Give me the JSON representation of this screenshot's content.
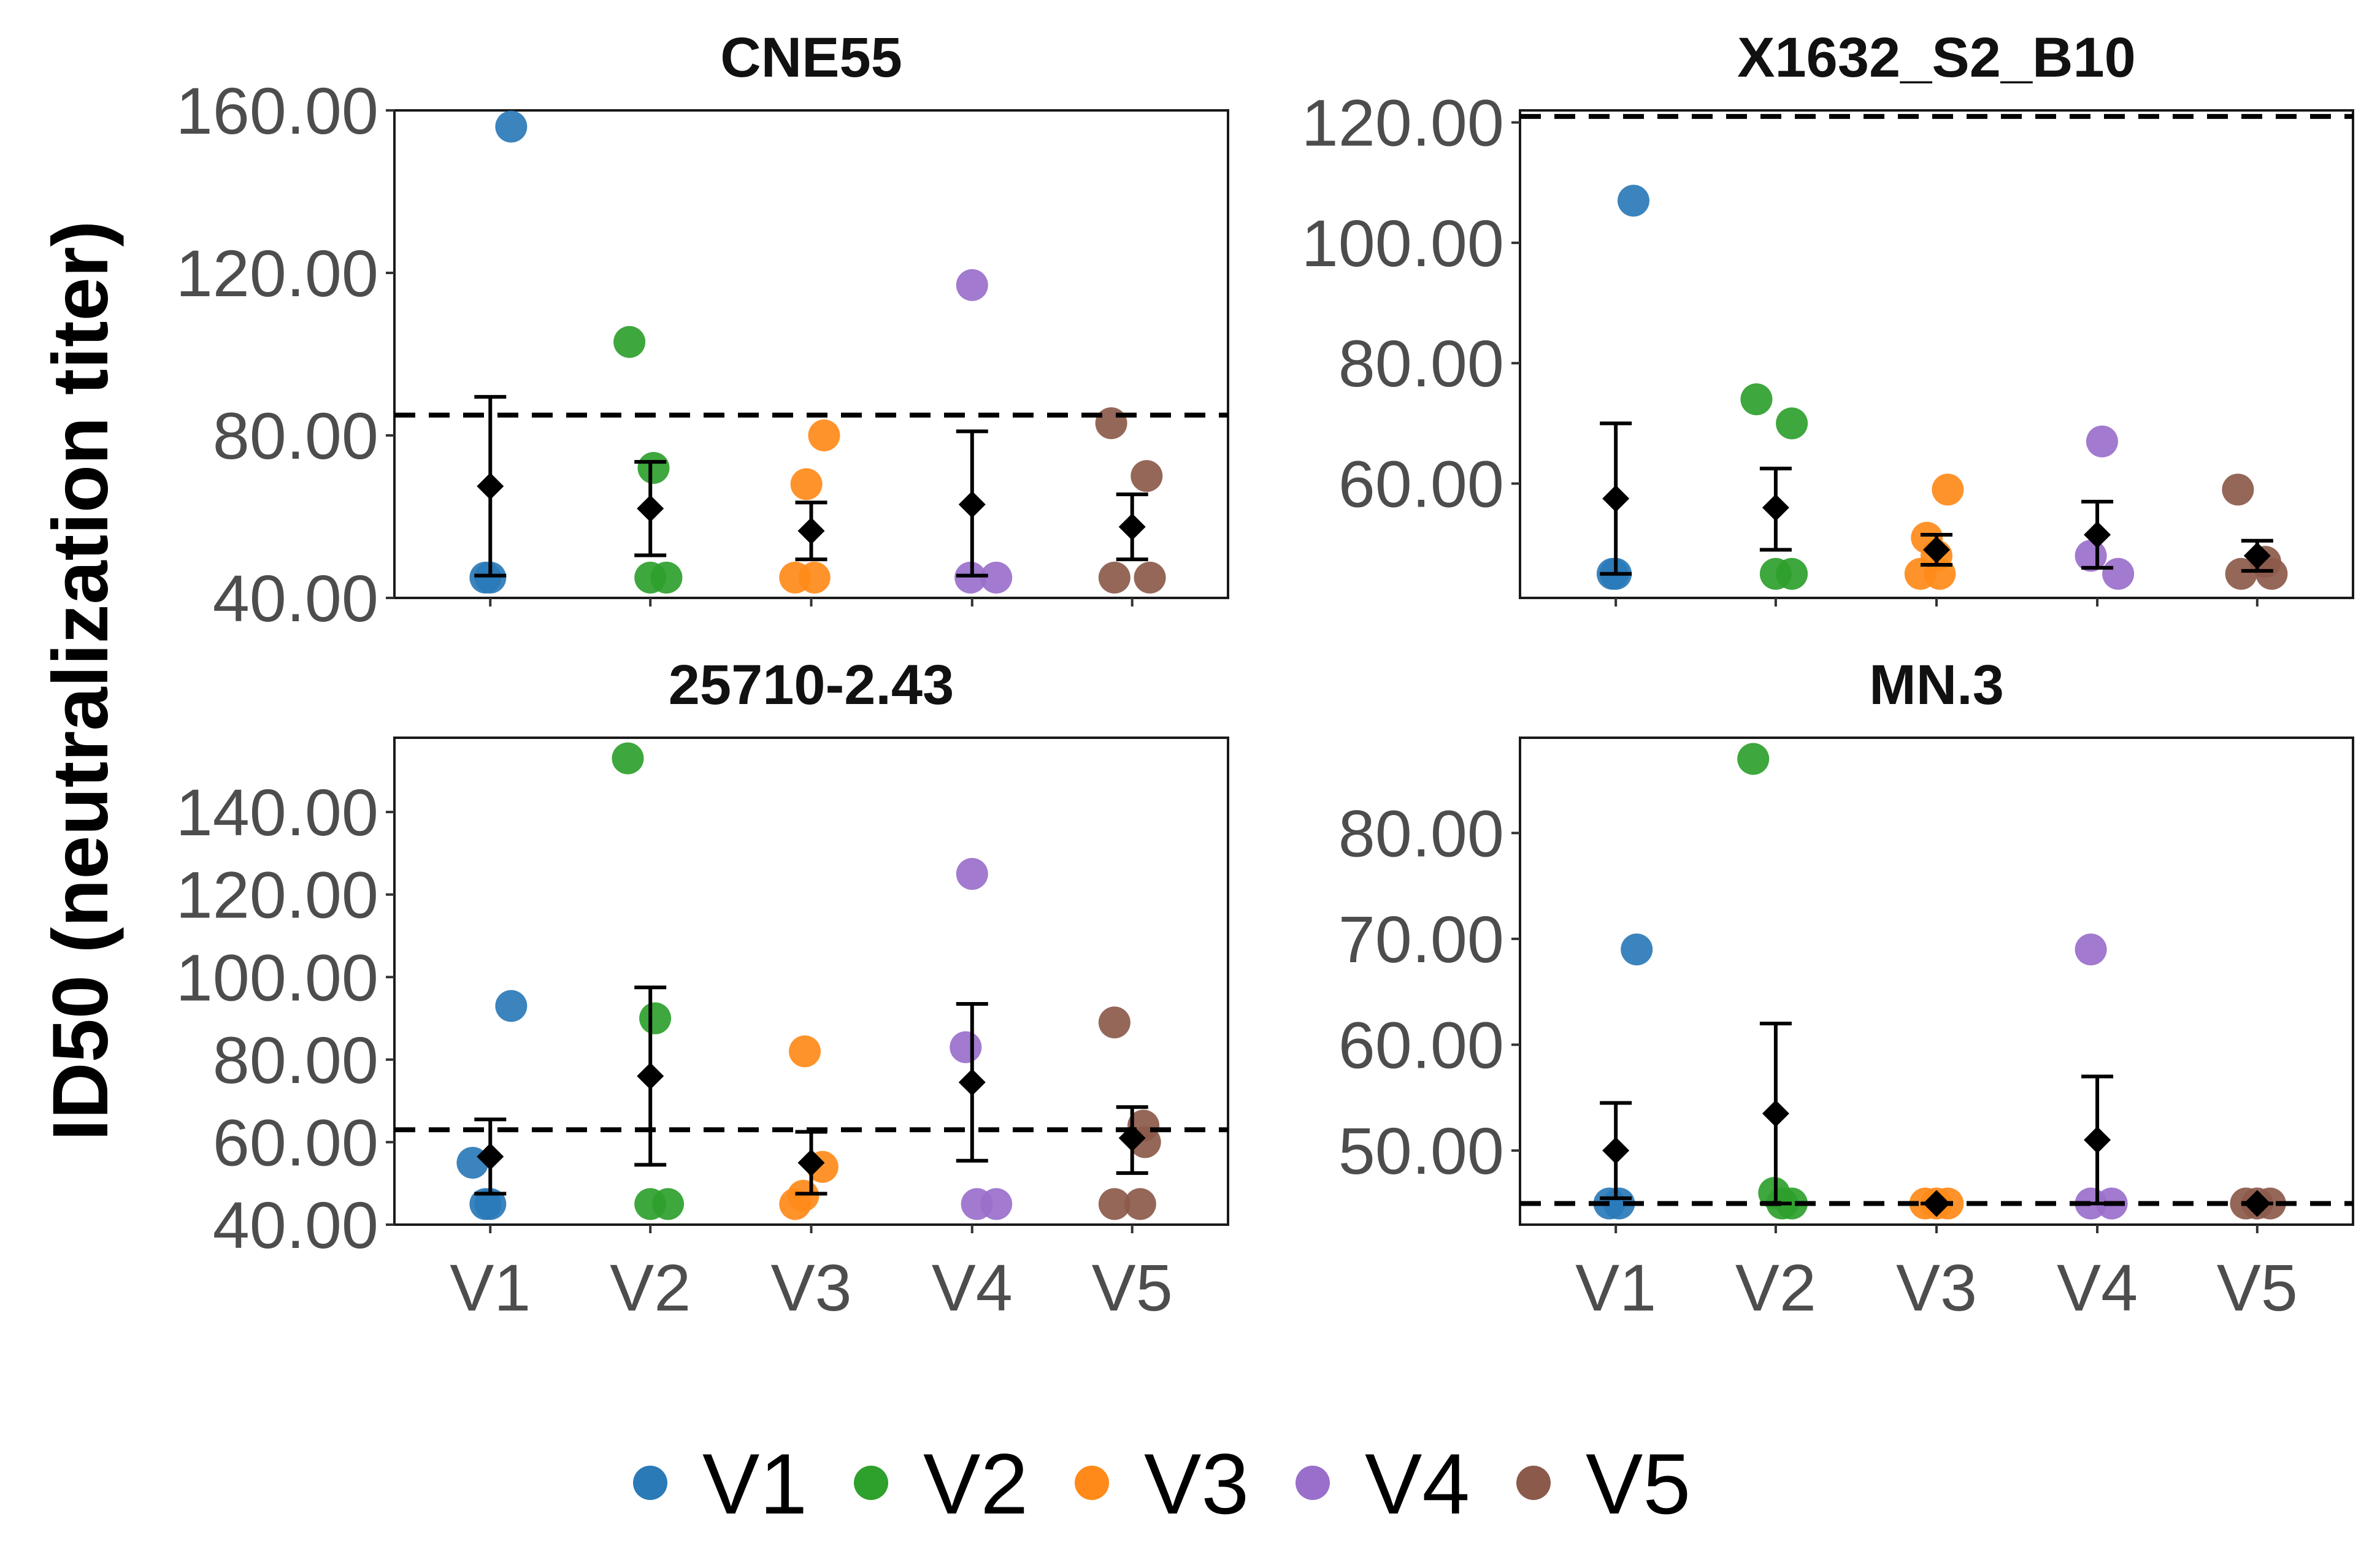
{
  "y_axis_label": "ID50 (neutralization titer)",
  "colors": {
    "V1": "#2a7ab8",
    "V2": "#2ea02c",
    "V3": "#ff8a19",
    "V4": "#9a6fcb",
    "V5": "#8c5a4b",
    "summary": "#000000",
    "threshold": "#000000"
  },
  "legend": [
    {
      "key": "V1",
      "label": "V1"
    },
    {
      "key": "V2",
      "label": "V2"
    },
    {
      "key": "V3",
      "label": "V3"
    },
    {
      "key": "V4",
      "label": "V4"
    },
    {
      "key": "V5",
      "label": "V5"
    }
  ],
  "chart_data": [
    {
      "type": "scatter",
      "title": "CNE55",
      "categories": [
        "V1",
        "V2",
        "V3",
        "V4",
        "V5"
      ],
      "ylim": [
        40,
        160
      ],
      "yticks": [
        40,
        80,
        120,
        160
      ],
      "ytick_labels": [
        "40.00",
        "80.00",
        "120.00",
        "160.00"
      ],
      "threshold": 85,
      "series": [
        {
          "name": "V1",
          "points": [
            {
              "dx": -0.03,
              "y": 45
            },
            {
              "dx": 0.0,
              "y": 45
            },
            {
              "dx": 0.13,
              "y": 156
            }
          ]
        },
        {
          "name": "V2",
          "points": [
            {
              "dx": 0.0,
              "y": 45
            },
            {
              "dx": 0.1,
              "y": 45
            },
            {
              "dx": 0.02,
              "y": 72
            },
            {
              "dx": -0.13,
              "y": 103
            }
          ]
        },
        {
          "name": "V3",
          "points": [
            {
              "dx": -0.1,
              "y": 45
            },
            {
              "dx": 0.02,
              "y": 45
            },
            {
              "dx": -0.03,
              "y": 68
            },
            {
              "dx": 0.08,
              "y": 80
            }
          ]
        },
        {
          "name": "V4",
          "points": [
            {
              "dx": -0.01,
              "y": 45
            },
            {
              "dx": 0.15,
              "y": 45
            },
            {
              "dx": 0.0,
              "y": 117
            }
          ]
        },
        {
          "name": "V5",
          "points": [
            {
              "dx": -0.11,
              "y": 45
            },
            {
              "dx": 0.11,
              "y": 45
            },
            {
              "dx": 0.09,
              "y": 70
            },
            {
              "dx": -0.13,
              "y": 83
            }
          ]
        }
      ],
      "summary": [
        {
          "category": "V1",
          "mean": 67.5,
          "low": 45.5,
          "high": 89.5
        },
        {
          "category": "V2",
          "mean": 62,
          "low": 50.5,
          "high": 73.5
        },
        {
          "category": "V3",
          "mean": 56.5,
          "low": 49.5,
          "high": 63.5
        },
        {
          "category": "V4",
          "mean": 63,
          "low": 45.5,
          "high": 81
        },
        {
          "category": "V5",
          "mean": 57.5,
          "low": 49.5,
          "high": 65.5
        }
      ]
    },
    {
      "type": "scatter",
      "title": "X1632_S2_B10",
      "categories": [
        "V1",
        "V2",
        "V3",
        "V4",
        "V5"
      ],
      "ylim": [
        41,
        122
      ],
      "yticks": [
        60,
        80,
        100,
        120
      ],
      "ytick_labels": [
        "60.00",
        "80.00",
        "100.00",
        "120.00"
      ],
      "threshold": 121,
      "series": [
        {
          "name": "V1",
          "points": [
            {
              "dx": -0.02,
              "y": 45
            },
            {
              "dx": 0.0,
              "y": 45
            },
            {
              "dx": 0.11,
              "y": 107
            }
          ]
        },
        {
          "name": "V2",
          "points": [
            {
              "dx": 0.0,
              "y": 45
            },
            {
              "dx": 0.1,
              "y": 45
            },
            {
              "dx": 0.1,
              "y": 70
            },
            {
              "dx": -0.12,
              "y": 74
            }
          ]
        },
        {
          "name": "V3",
          "points": [
            {
              "dx": -0.1,
              "y": 45
            },
            {
              "dx": 0.02,
              "y": 45
            },
            {
              "dx": -0.06,
              "y": 51
            },
            {
              "dx": 0.0,
              "y": 48
            },
            {
              "dx": 0.07,
              "y": 59
            }
          ]
        },
        {
          "name": "V4",
          "points": [
            {
              "dx": -0.04,
              "y": 48
            },
            {
              "dx": 0.13,
              "y": 45
            },
            {
              "dx": 0.03,
              "y": 67
            }
          ]
        },
        {
          "name": "V5",
          "points": [
            {
              "dx": -0.1,
              "y": 45
            },
            {
              "dx": 0.09,
              "y": 45
            },
            {
              "dx": 0.05,
              "y": 47
            },
            {
              "dx": -0.12,
              "y": 59
            }
          ]
        }
      ],
      "summary": [
        {
          "category": "V1",
          "mean": 57.5,
          "low": 45,
          "high": 70
        },
        {
          "category": "V2",
          "mean": 56,
          "low": 49,
          "high": 62.5
        },
        {
          "category": "V3",
          "mean": 49,
          "low": 46.5,
          "high": 51.5
        },
        {
          "category": "V4",
          "mean": 51.5,
          "low": 46,
          "high": 57
        },
        {
          "category": "V5",
          "mean": 48,
          "low": 45.5,
          "high": 50.5
        }
      ]
    },
    {
      "type": "scatter",
      "title": "25710-2.43",
      "categories": [
        "V1",
        "V2",
        "V3",
        "V4",
        "V5"
      ],
      "ylim": [
        40,
        158
      ],
      "yticks": [
        40,
        60,
        80,
        100,
        120,
        140
      ],
      "ytick_labels": [
        "40.00",
        "60.00",
        "80.00",
        "100.00",
        "120.00",
        "140.00"
      ],
      "threshold": 63,
      "series": [
        {
          "name": "V1",
          "points": [
            {
              "dx": -0.03,
              "y": 45
            },
            {
              "dx": 0.0,
              "y": 45
            },
            {
              "dx": -0.11,
              "y": 55
            },
            {
              "dx": 0.13,
              "y": 93
            }
          ]
        },
        {
          "name": "V2",
          "points": [
            {
              "dx": 0.0,
              "y": 45
            },
            {
              "dx": 0.11,
              "y": 45
            },
            {
              "dx": 0.03,
              "y": 90
            },
            {
              "dx": -0.14,
              "y": 153
            }
          ]
        },
        {
          "name": "V3",
          "points": [
            {
              "dx": -0.1,
              "y": 45
            },
            {
              "dx": -0.05,
              "y": 47
            },
            {
              "dx": 0.07,
              "y": 54
            },
            {
              "dx": -0.04,
              "y": 82
            }
          ]
        },
        {
          "name": "V4",
          "points": [
            {
              "dx": 0.03,
              "y": 45
            },
            {
              "dx": 0.15,
              "y": 45
            },
            {
              "dx": -0.04,
              "y": 83
            },
            {
              "dx": 0.0,
              "y": 125
            }
          ]
        },
        {
          "name": "V5",
          "points": [
            {
              "dx": -0.11,
              "y": 45
            },
            {
              "dx": 0.05,
              "y": 45
            },
            {
              "dx": 0.08,
              "y": 60
            },
            {
              "dx": 0.07,
              "y": 64
            },
            {
              "dx": -0.11,
              "y": 89
            }
          ]
        }
      ],
      "summary": [
        {
          "category": "V1",
          "mean": 56.5,
          "low": 47.5,
          "high": 65.5
        },
        {
          "category": "V2",
          "mean": 76,
          "low": 54.5,
          "high": 97.5
        },
        {
          "category": "V3",
          "mean": 55,
          "low": 47.5,
          "high": 62.5
        },
        {
          "category": "V4",
          "mean": 74.5,
          "low": 55.5,
          "high": 93.5
        },
        {
          "category": "V5",
          "mean": 61,
          "low": 52.5,
          "high": 68.5
        }
      ]
    },
    {
      "type": "scatter",
      "title": "MN.3",
      "categories": [
        "V1",
        "V2",
        "V3",
        "V4",
        "V5"
      ],
      "ylim": [
        43,
        89
      ],
      "yticks": [
        50,
        60,
        70,
        80
      ],
      "ytick_labels": [
        "50.00",
        "60.00",
        "70.00",
        "80.00"
      ],
      "threshold": 45,
      "series": [
        {
          "name": "V1",
          "points": [
            {
              "dx": -0.04,
              "y": 45
            },
            {
              "dx": 0.02,
              "y": 45
            },
            {
              "dx": 0.13,
              "y": 69
            }
          ]
        },
        {
          "name": "V2",
          "points": [
            {
              "dx": 0.04,
              "y": 45
            },
            {
              "dx": 0.1,
              "y": 45
            },
            {
              "dx": -0.01,
              "y": 46
            },
            {
              "dx": -0.14,
              "y": 87
            }
          ]
        },
        {
          "name": "V3",
          "points": [
            {
              "dx": -0.07,
              "y": 45
            },
            {
              "dx": 0.0,
              "y": 45
            },
            {
              "dx": 0.07,
              "y": 45
            }
          ]
        },
        {
          "name": "V4",
          "points": [
            {
              "dx": -0.04,
              "y": 45
            },
            {
              "dx": 0.09,
              "y": 45
            },
            {
              "dx": -0.04,
              "y": 69
            }
          ]
        },
        {
          "name": "V5",
          "points": [
            {
              "dx": -0.07,
              "y": 45
            },
            {
              "dx": 0.0,
              "y": 45
            },
            {
              "dx": 0.08,
              "y": 45
            }
          ]
        }
      ],
      "summary": [
        {
          "category": "V1",
          "mean": 50,
          "low": 45.5,
          "high": 54.5
        },
        {
          "category": "V2",
          "mean": 53.5,
          "low": 45,
          "high": 62
        },
        {
          "category": "V3",
          "mean": 45,
          "low": 45,
          "high": 45
        },
        {
          "category": "V4",
          "mean": 51,
          "low": 45,
          "high": 57
        },
        {
          "category": "V5",
          "mean": 45,
          "low": 45,
          "high": 45
        }
      ]
    }
  ]
}
